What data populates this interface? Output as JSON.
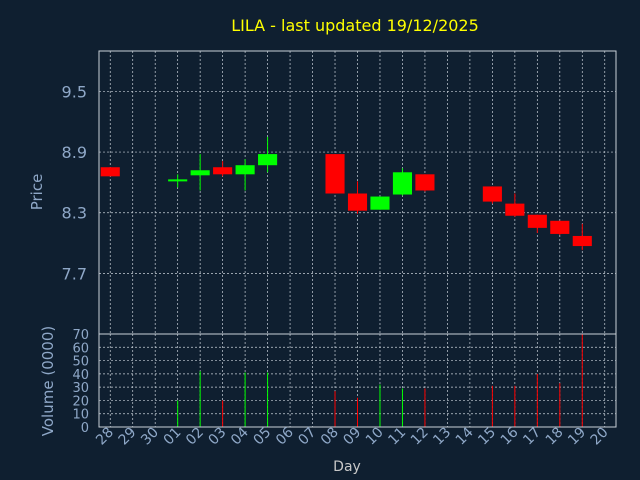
{
  "colors": {
    "background": "#0f1f30",
    "up": "#00ff00",
    "down": "#ff0000",
    "text": "#8fa8c8",
    "title": "#ffff00",
    "grid": "#c8d0d8"
  },
  "chart_data": [
    {
      "type": "candlestick",
      "title": "LILA - last updated 19/12/2025",
      "ylabel": "Price",
      "ylim": [
        7.1,
        9.9
      ],
      "yticks": [
        "7.7",
        "8.3",
        "8.9",
        "9.5"
      ],
      "grid": true,
      "categories": [
        "28",
        "29",
        "30",
        "01",
        "02",
        "03",
        "04",
        "05",
        "06",
        "07",
        "08",
        "09",
        "10",
        "11",
        "12",
        "13",
        "14",
        "15",
        "16",
        "17",
        "18",
        "19",
        "20"
      ],
      "candles": [
        {
          "x": "28",
          "open": 8.75,
          "close": 8.66,
          "high": 8.75,
          "low": 8.66
        },
        {
          "x": "01",
          "open": 8.61,
          "close": 8.63,
          "high": 8.68,
          "low": 8.55
        },
        {
          "x": "02",
          "open": 8.67,
          "close": 8.72,
          "high": 8.88,
          "low": 8.52
        },
        {
          "x": "03",
          "open": 8.75,
          "close": 8.68,
          "high": 8.81,
          "low": 8.66
        },
        {
          "x": "04",
          "open": 8.68,
          "close": 8.77,
          "high": 8.83,
          "low": 8.52
        },
        {
          "x": "05",
          "open": 8.77,
          "close": 8.88,
          "high": 9.05,
          "low": 8.7
        },
        {
          "x": "08",
          "open": 8.88,
          "close": 8.49,
          "high": 8.88,
          "low": 8.49
        },
        {
          "x": "09",
          "open": 8.49,
          "close": 8.32,
          "high": 8.61,
          "low": 8.29
        },
        {
          "x": "10",
          "open": 8.33,
          "close": 8.46,
          "high": 8.46,
          "low": 8.33
        },
        {
          "x": "11",
          "open": 8.48,
          "close": 8.7,
          "high": 8.74,
          "low": 8.47
        },
        {
          "x": "12",
          "open": 8.68,
          "close": 8.52,
          "high": 8.68,
          "low": 8.51
        },
        {
          "x": "15",
          "open": 8.56,
          "close": 8.41,
          "high": 8.56,
          "low": 8.39
        },
        {
          "x": "16",
          "open": 8.39,
          "close": 8.27,
          "high": 8.49,
          "low": 8.26
        },
        {
          "x": "17",
          "open": 8.28,
          "close": 8.15,
          "high": 8.28,
          "low": 8.1
        },
        {
          "x": "18",
          "open": 8.22,
          "close": 8.09,
          "high": 8.22,
          "low": 8.08
        },
        {
          "x": "19",
          "open": 8.07,
          "close": 7.97,
          "high": 8.19,
          "low": 7.93
        }
      ]
    },
    {
      "type": "bar",
      "ylabel": "Volume (0000)",
      "xlabel": "Day",
      "ylim": [
        0,
        70
      ],
      "yticks": [
        "0",
        "10",
        "20",
        "30",
        "40",
        "50",
        "60",
        "70"
      ],
      "grid": true,
      "categories": [
        "28",
        "29",
        "30",
        "01",
        "02",
        "03",
        "04",
        "05",
        "06",
        "07",
        "08",
        "09",
        "10",
        "11",
        "12",
        "13",
        "14",
        "15",
        "16",
        "17",
        "18",
        "19",
        "20"
      ],
      "values": [
        {
          "x": "01",
          "value": 20,
          "dir": "up"
        },
        {
          "x": "02",
          "value": 42,
          "dir": "up"
        },
        {
          "x": "03",
          "value": 20,
          "dir": "down"
        },
        {
          "x": "04",
          "value": 41,
          "dir": "up"
        },
        {
          "x": "05",
          "value": 41,
          "dir": "up"
        },
        {
          "x": "08",
          "value": 27,
          "dir": "down"
        },
        {
          "x": "09",
          "value": 22,
          "dir": "down"
        },
        {
          "x": "10",
          "value": 32,
          "dir": "up"
        },
        {
          "x": "11",
          "value": 29,
          "dir": "up"
        },
        {
          "x": "12",
          "value": 29,
          "dir": "down"
        },
        {
          "x": "15",
          "value": 31,
          "dir": "down"
        },
        {
          "x": "16",
          "value": 31,
          "dir": "down"
        },
        {
          "x": "17",
          "value": 40,
          "dir": "down"
        },
        {
          "x": "18",
          "value": 33,
          "dir": "down"
        },
        {
          "x": "19",
          "value": 70,
          "dir": "down"
        }
      ]
    }
  ]
}
